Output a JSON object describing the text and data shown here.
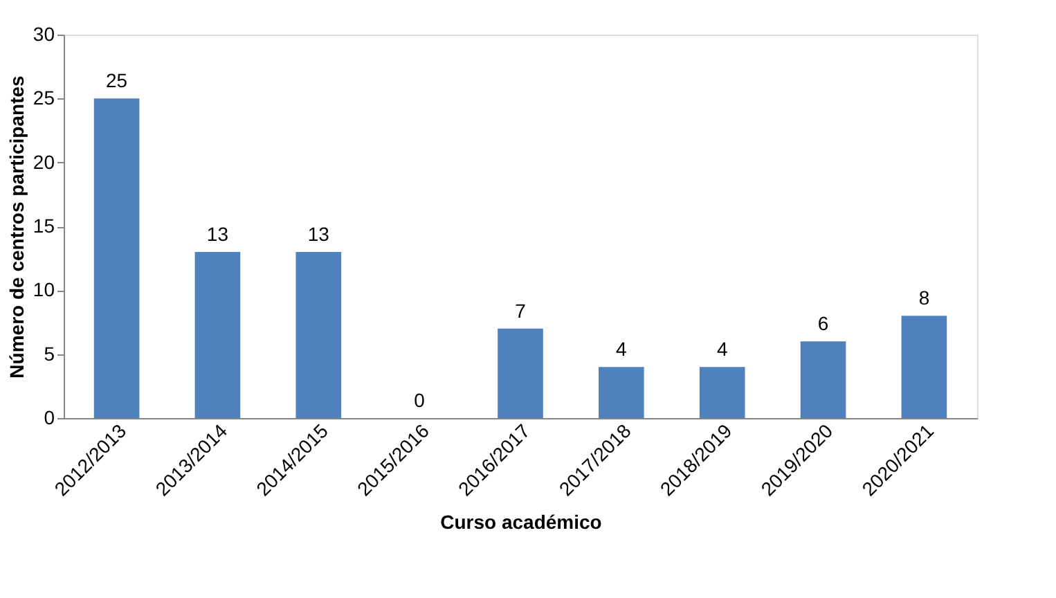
{
  "chart_data": {
    "type": "bar",
    "xlabel": "Curso académico",
    "ylabel": "Número de centros participantes",
    "categories": [
      "2012/2013",
      "2013/2014",
      "2014/2015",
      "2015/2016",
      "2016/2017",
      "2017/2018",
      "2018/2019",
      "2019/2020",
      "2020/2021"
    ],
    "values": [
      25,
      13,
      13,
      0,
      7,
      4,
      4,
      6,
      8
    ],
    "color": "#4f81bd",
    "ylim": [
      0,
      30
    ],
    "yticks": [
      0,
      5,
      10,
      15,
      20,
      25,
      30
    ],
    "grid": false,
    "data_labels": true
  }
}
